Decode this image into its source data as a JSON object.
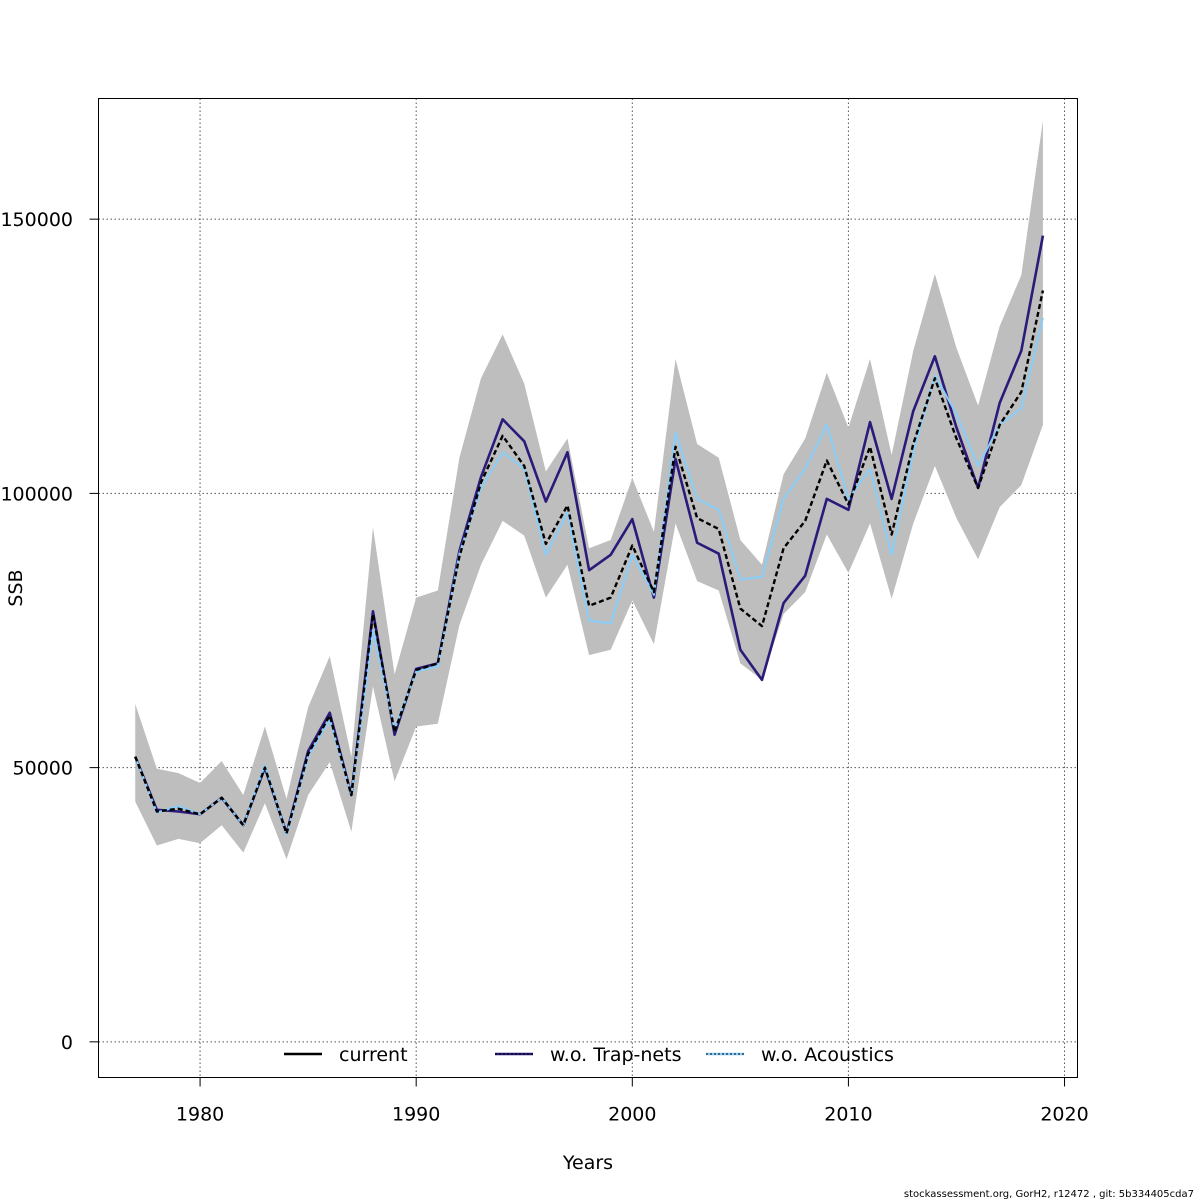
{
  "chart_data": {
    "type": "line",
    "title": "",
    "xlabel": "Years",
    "ylabel": "SSB",
    "xlim": [
      1975.3,
      2020.6
    ],
    "ylim": [
      -6500,
      172000
    ],
    "xticks": [
      1980,
      1990,
      2000,
      2010,
      2020
    ],
    "xtick_labels": [
      "1980",
      "1990",
      "2000",
      "2010",
      "2020"
    ],
    "yticks": [
      0,
      50000,
      100000,
      150000
    ],
    "ytick_labels": [
      "0",
      "50000",
      "100000",
      "150000"
    ],
    "grid": true,
    "legend_position": "bottom",
    "x": [
      1977,
      1978,
      1979,
      1980,
      1981,
      1982,
      1983,
      1984,
      1985,
      1986,
      1987,
      1988,
      1989,
      1990,
      1991,
      1992,
      1993,
      1994,
      1995,
      1996,
      1997,
      1998,
      1999,
      2000,
      2001,
      2002,
      2003,
      2004,
      2005,
      2006,
      2007,
      2008,
      2009,
      2010,
      2011,
      2012,
      2013,
      2014,
      2015,
      2016,
      2017,
      2018,
      2019
    ],
    "band": {
      "name": "confidence interval",
      "color": "#bebebe",
      "upper": [
        61600,
        49800,
        49000,
        47200,
        51200,
        45000,
        57500,
        44300,
        61000,
        70300,
        52000,
        93800,
        67000,
        81000,
        82300,
        106500,
        121000,
        129000,
        120000,
        104000,
        110000,
        90000,
        91500,
        102800,
        93000,
        124500,
        109000,
        106500,
        91500,
        87000,
        103500,
        110000,
        122000,
        112000,
        124500,
        107000,
        126000,
        140000,
        126500,
        116000,
        130500,
        139800,
        168000
      ],
      "lower": [
        43800,
        35800,
        37000,
        36200,
        39500,
        34500,
        43500,
        33300,
        45000,
        51000,
        38300,
        64800,
        47500,
        57500,
        58000,
        76000,
        87000,
        95000,
        92300,
        81000,
        87000,
        70500,
        71500,
        80500,
        72500,
        94500,
        84000,
        82300,
        69000,
        66000,
        78000,
        82000,
        92500,
        85500,
        94500,
        80800,
        94500,
        105000,
        95500,
        88000,
        97500,
        101500,
        112500
      ]
    },
    "series": [
      {
        "name": "current",
        "color": "#000000",
        "values": [
          52000,
          42000,
          42500,
          41500,
          44500,
          39500,
          50000,
          38000,
          52500,
          59500,
          45000,
          78000,
          56500,
          67800,
          69000,
          88500,
          102000,
          110500,
          105000,
          90800,
          97800,
          79500,
          81000,
          90500,
          82000,
          108500,
          95500,
          93500,
          79000,
          75800,
          90000,
          95000,
          106000,
          98000,
          108500,
          92500,
          109000,
          121000,
          110000,
          101000,
          112500,
          118500,
          137000
        ]
      },
      {
        "name": "w.o. Trap-nets",
        "color": "#2c1a7a",
        "values": [
          52000,
          42300,
          42000,
          41500,
          44500,
          39500,
          50000,
          38000,
          53000,
          60000,
          45000,
          78500,
          56000,
          68000,
          69000,
          89500,
          103000,
          113500,
          109500,
          98500,
          107500,
          86000,
          88800,
          95300,
          81000,
          106300,
          91000,
          89000,
          71500,
          66000,
          80000,
          85000,
          99000,
          97000,
          113000,
          99000,
          115000,
          125000,
          112000,
          101000,
          116500,
          126000,
          147000
        ]
      },
      {
        "name": "w.o. Acoustics",
        "color": "#87cefa",
        "values": [
          52000,
          41800,
          43000,
          41500,
          44500,
          39500,
          50500,
          37800,
          52000,
          58800,
          45000,
          75000,
          57000,
          67500,
          68500,
          89000,
          101000,
          107500,
          104500,
          88800,
          96500,
          76800,
          76300,
          88800,
          81500,
          111000,
          99000,
          97000,
          84300,
          84800,
          99000,
          104500,
          112500,
          99000,
          104500,
          88800,
          107500,
          121500,
          114500,
          105000,
          112500,
          115500,
          132000
        ]
      }
    ]
  },
  "footer": {
    "credit": "stockassessment.org, GorH2, r12472 , git: 5b334405cda7"
  }
}
